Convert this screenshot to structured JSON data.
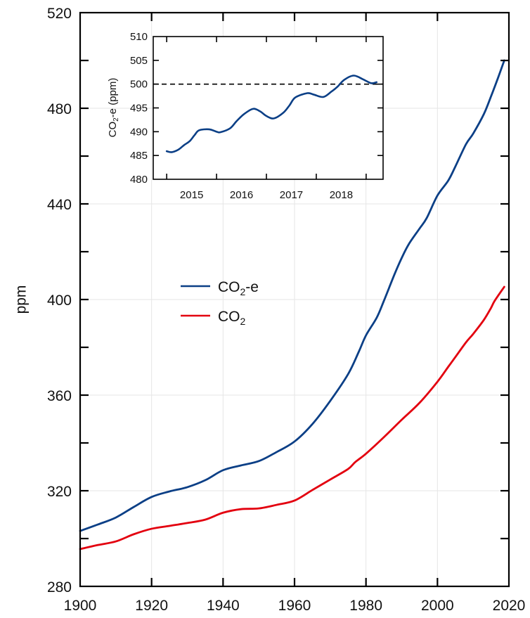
{
  "chart_data": [
    {
      "id": "main",
      "type": "line",
      "title": "",
      "xlabel": "",
      "ylabel": "ppm",
      "xlim": [
        1900,
        2020
      ],
      "ylim": [
        280,
        520
      ],
      "x_ticks": [
        1900,
        1920,
        1940,
        1960,
        1980,
        2000,
        2020
      ],
      "x_tick_labels": [
        "1900",
        "1920",
        "1940",
        "1960",
        "1980",
        "2000",
        "2020"
      ],
      "y_ticks": [
        280,
        320,
        360,
        400,
        440,
        480,
        520
      ],
      "y_tick_labels": [
        "280",
        "320",
        "360",
        "400",
        "440",
        "480",
        "520"
      ],
      "y_minor_ticks": [
        300,
        340,
        380,
        420,
        460,
        500
      ],
      "x_minor_ticks": [],
      "grid": true,
      "legend": {
        "placement": "center-left",
        "entries": [
          {
            "label_main": "CO",
            "label_sub": "2",
            "label_suffix": "-e",
            "series": "CO2-e"
          },
          {
            "label_main": "CO",
            "label_sub": "2",
            "label_suffix": "",
            "series": "CO2"
          }
        ]
      },
      "series": [
        {
          "name": "CO2-e",
          "color": "#0b3f86",
          "x": [
            1900,
            1905,
            1910,
            1915,
            1920,
            1925,
            1930,
            1935,
            1940,
            1945,
            1950,
            1955,
            1960,
            1965,
            1970,
            1975,
            1978,
            1980,
            1983,
            1985,
            1988,
            1990,
            1992,
            1995,
            1997,
            2000,
            2003,
            2005,
            2008,
            2010,
            2013,
            2015,
            2017,
            2018.7
          ],
          "y": [
            303.2,
            305.9,
            308.8,
            313.2,
            317.4,
            319.7,
            321.5,
            324.4,
            328.6,
            330.6,
            332.4,
            336.2,
            340.6,
            347.9,
            357.6,
            368.8,
            378.2,
            385.0,
            392.4,
            399.4,
            410.6,
            417.4,
            423.2,
            429.7,
            434.1,
            443.5,
            449.7,
            455.6,
            465.0,
            469.4,
            477.6,
            485.0,
            492.9,
            500.0
          ]
        },
        {
          "name": "CO2",
          "color": "#e3000f",
          "x": [
            1900,
            1905,
            1910,
            1915,
            1920,
            1925,
            1930,
            1935,
            1940,
            1945,
            1950,
            1955,
            1960,
            1965,
            1970,
            1975,
            1977,
            1980,
            1985,
            1990,
            1995,
            2000,
            2003,
            2005,
            2008,
            2010,
            2013,
            2015,
            2016,
            2018.7
          ],
          "y": [
            295.6,
            297.3,
            298.8,
            301.8,
            304.1,
            305.3,
            306.5,
            307.9,
            310.8,
            312.3,
            312.6,
            314.1,
            315.9,
            320.3,
            324.7,
            329.1,
            332.0,
            335.5,
            342.4,
            349.7,
            356.8,
            365.6,
            371.8,
            375.9,
            382.1,
            385.6,
            391.5,
            396.5,
            399.4,
            405.3
          ]
        }
      ]
    },
    {
      "id": "inset",
      "type": "line",
      "title": "",
      "xlabel": "",
      "ylabel_main": "CO",
      "ylabel_sub": "2",
      "ylabel_suffix": "-e (ppm)",
      "xlim": [
        2014.73,
        2019.34
      ],
      "ylim": [
        480,
        510
      ],
      "x_ticks": [
        2015,
        2016,
        2017,
        2018,
        2019
      ],
      "x_tick_labels": [
        {
          "label": "2015",
          "at": 2015.5
        },
        {
          "label": "2016",
          "at": 2016.5
        },
        {
          "label": "2017",
          "at": 2017.5
        },
        {
          "label": "2018",
          "at": 2018.5
        }
      ],
      "y_ticks": [
        480,
        485,
        490,
        495,
        500,
        505,
        510
      ],
      "y_tick_labels": [
        "480",
        "485",
        "490",
        "495",
        "500",
        "505",
        "510"
      ],
      "grid": false,
      "reference_line": {
        "y": 500,
        "style": "dashed",
        "color": "#000000"
      },
      "series": [
        {
          "name": "CO2-e",
          "color": "#0b3f86",
          "x": [
            2015.0,
            2015.1,
            2015.23,
            2015.35,
            2015.46,
            2015.56,
            2015.65,
            2015.85,
            2016.0,
            2016.08,
            2016.27,
            2016.4,
            2016.55,
            2016.73,
            2016.87,
            2017.0,
            2017.15,
            2017.34,
            2017.46,
            2017.58,
            2017.82,
            2017.95,
            2018.14,
            2018.3,
            2018.42,
            2018.56,
            2018.75,
            2018.94,
            2019.1,
            2019.21
          ],
          "y": [
            485.9,
            485.7,
            486.2,
            487.2,
            488.0,
            489.3,
            490.3,
            490.5,
            490.0,
            489.9,
            490.7,
            492.2,
            493.7,
            494.8,
            494.3,
            493.3,
            492.8,
            494.0,
            495.5,
            497.2,
            498.1,
            497.8,
            497.3,
            498.4,
            499.4,
            500.9,
            501.8,
            501.0,
            500.2,
            500.4
          ]
        }
      ]
    }
  ]
}
